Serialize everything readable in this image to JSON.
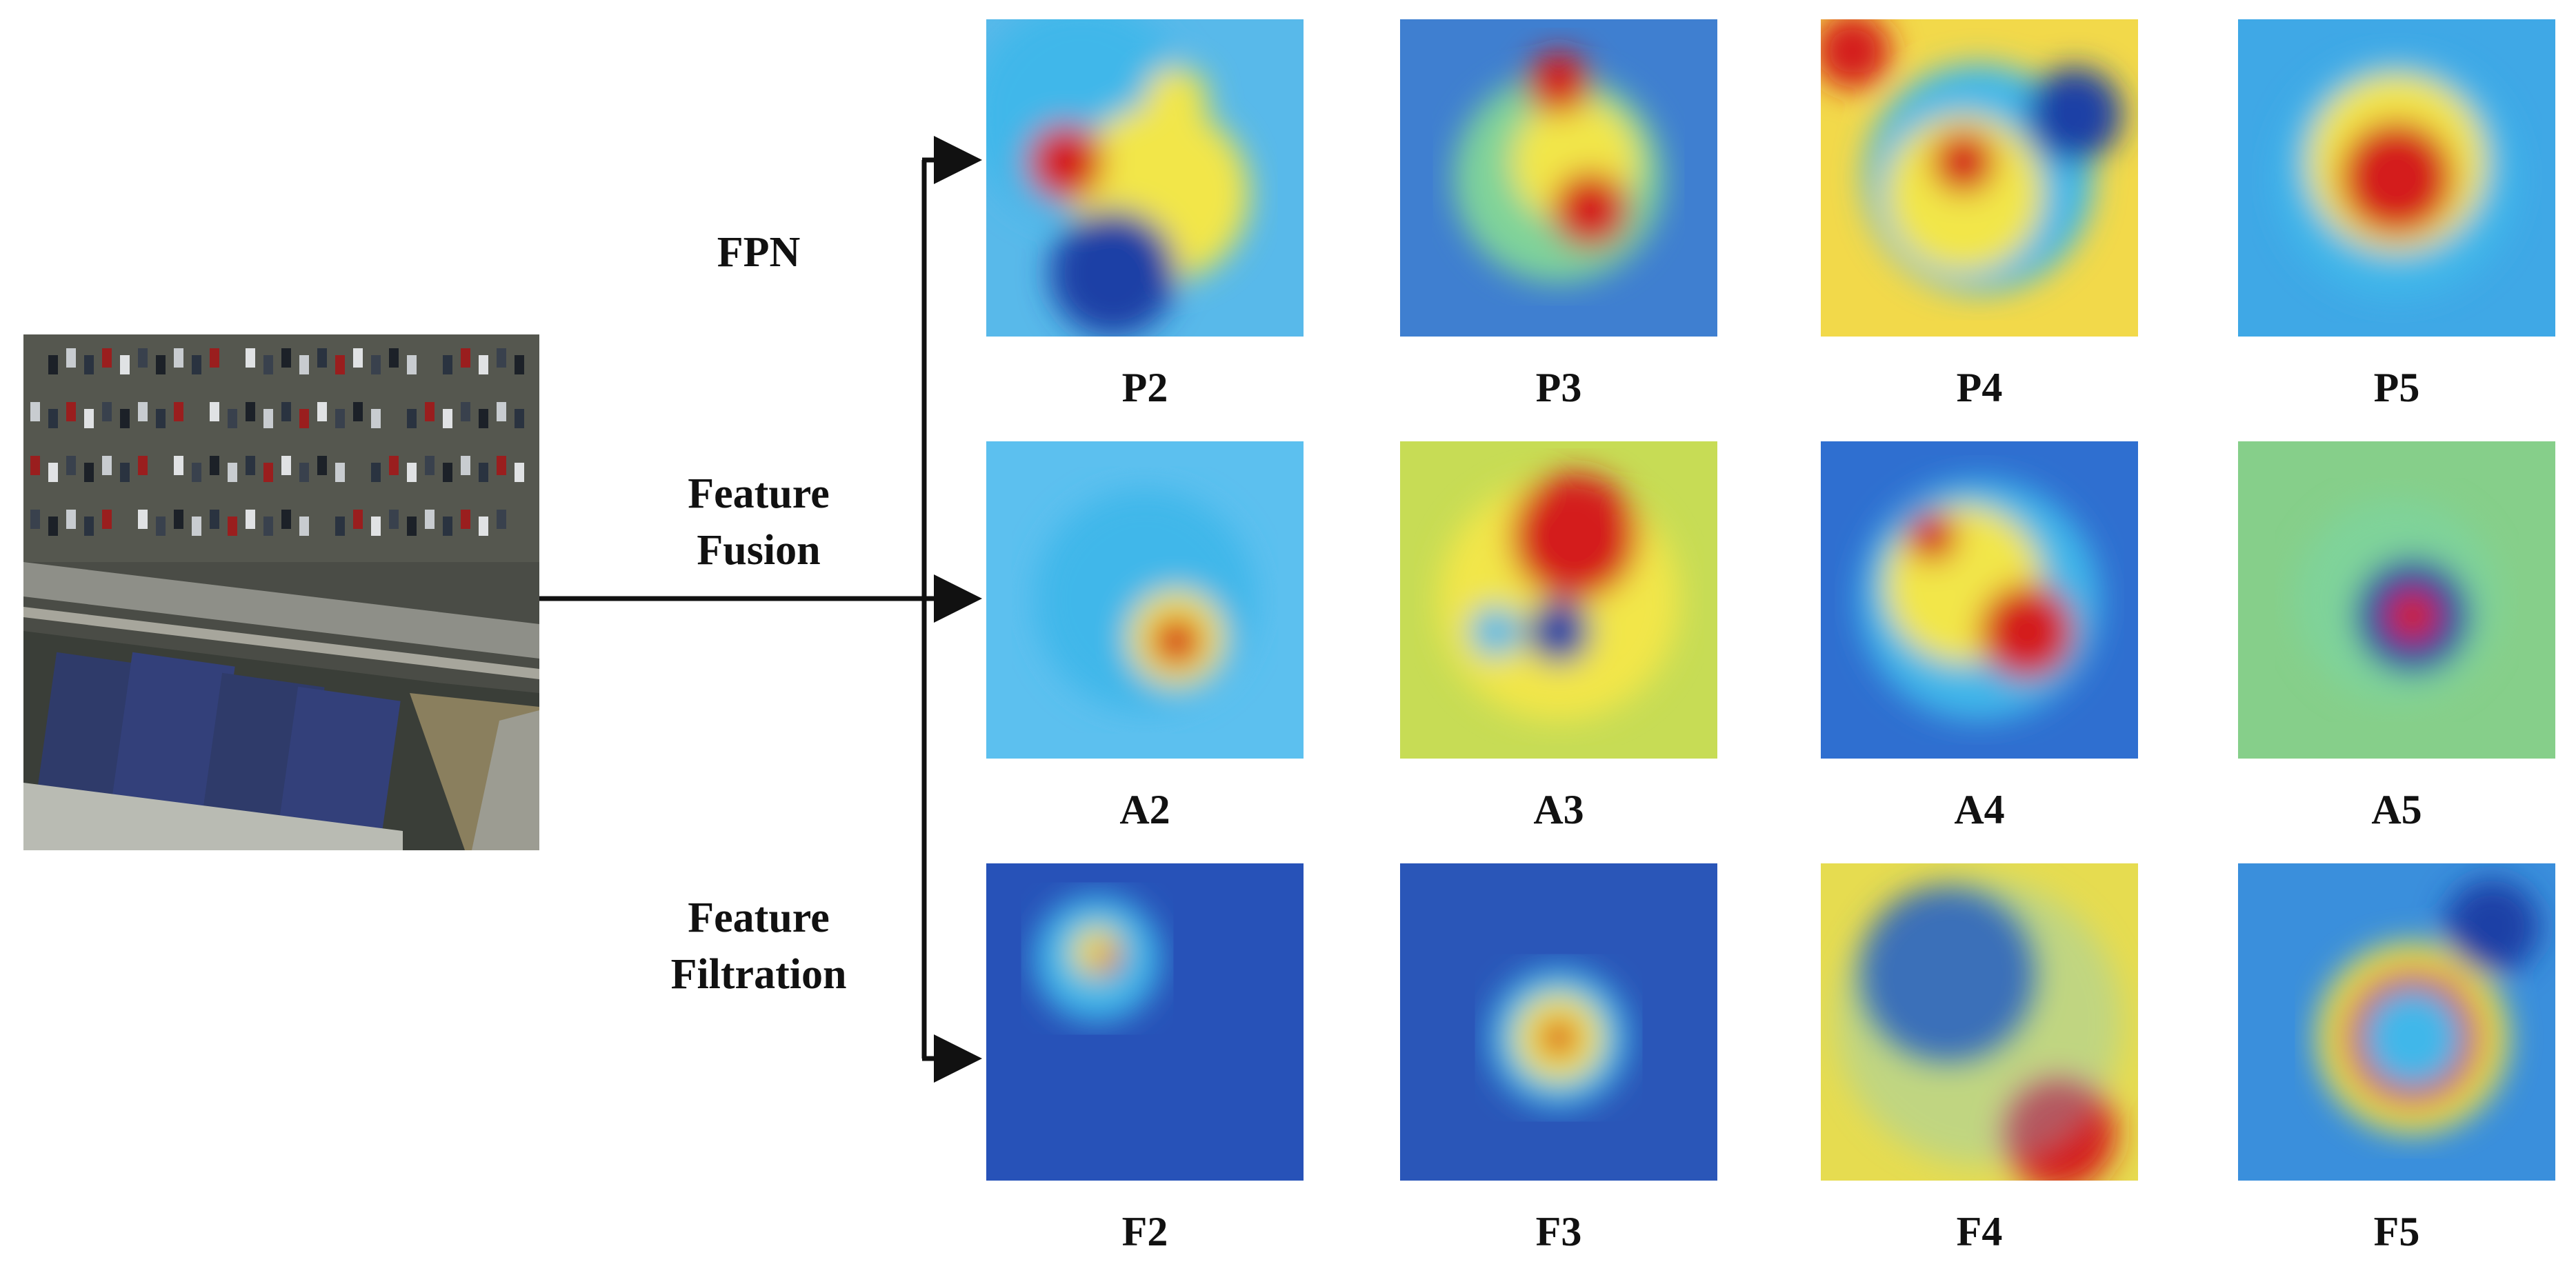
{
  "rows": [
    {
      "label": "FPN",
      "maps": [
        "P2",
        "P3",
        "P4",
        "P5"
      ]
    },
    {
      "label": "Feature Fusion",
      "label_lines": [
        "Feature",
        "Fusion"
      ],
      "maps": [
        "A2",
        "A3",
        "A4",
        "A5"
      ]
    },
    {
      "label": "Feature Filtration",
      "label_lines": [
        "Feature",
        "Filtration"
      ],
      "maps": [
        "F2",
        "F3",
        "F4",
        "F5"
      ]
    }
  ],
  "colors": {
    "heatmap_low": "#1a3fa6",
    "heatmap_mid_low": "#3fb7ea",
    "heatmap_mid": "#7fd39a",
    "heatmap_mid_high": "#f2e64a",
    "heatmap_high": "#d41e1e",
    "arrow": "#111111"
  },
  "icons": {
    "input_image": "aerial-parking-lot-tennis-courts-image",
    "heatmaps": "attention-heatmap"
  }
}
